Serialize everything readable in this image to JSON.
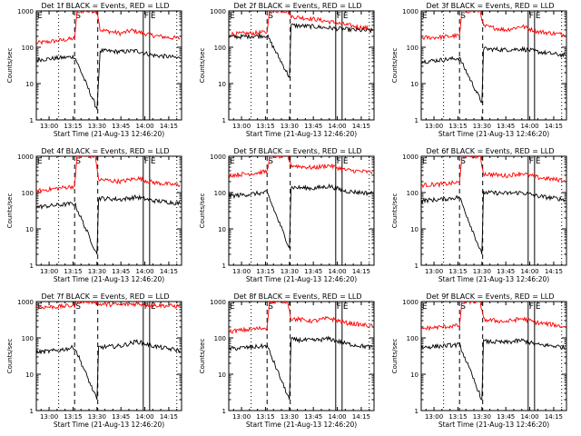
{
  "figure": {
    "background": "#ffffff",
    "line_color": "#000000"
  },
  "chart_data": [
    {
      "type": "line",
      "title": "Det 1f BLACK = Events, RED = LLD",
      "xlabel": "Start Time (21-Aug-13 12:46:20)",
      "ylabel": "Counts/sec",
      "yscale": "log",
      "ylim": [
        1,
        1000
      ],
      "xlim": [
        "12:52",
        "14:23"
      ],
      "x_ticks": [
        "13:00",
        "13:15",
        "13:30",
        "13:45",
        "14:00",
        "14:15"
      ],
      "y_ticks": [
        "1",
        "10",
        "100",
        "1000"
      ],
      "grid": false,
      "series": [
        {
          "color": "#ff0000",
          "x": [
            "12:52",
            "13:05",
            "13:16",
            "13:17.5",
            "13:30",
            "13:32",
            "13:45",
            "13:52",
            "14:05",
            "14:15",
            "14:22"
          ],
          "y": [
            130,
            150,
            175,
            1000,
            1000,
            300,
            240,
            290,
            210,
            185,
            175
          ]
        },
        {
          "color": "#000000",
          "x": [
            "12:52",
            "13:05",
            "13:16",
            "13:30",
            "13:32",
            "13:45",
            "13:55",
            "14:05",
            "14:15",
            "14:22"
          ],
          "y": [
            45,
            50,
            55,
            2,
            80,
            75,
            80,
            60,
            55,
            50
          ]
        }
      ],
      "markers": [
        {
          "label": "E",
          "x": "12:52"
        },
        {
          "label": "S",
          "x": "13:16"
        },
        {
          "label": "F",
          "x": "13:59"
        },
        {
          "label": "E",
          "x": "14:03"
        }
      ]
    },
    {
      "type": "line",
      "title": "Det 2f BLACK = Events, RED = LLD",
      "xlabel": "Start Time (21-Aug-13 12:46:20)",
      "ylabel": "Counts/sec",
      "yscale": "log",
      "ylim": [
        1,
        1000
      ],
      "xlim": [
        "12:52",
        "14:23"
      ],
      "x_ticks": [
        "13:00",
        "13:15",
        "13:30",
        "13:45",
        "14:00",
        "14:15"
      ],
      "y_ticks": [
        "1",
        "10",
        "100",
        "1000"
      ],
      "grid": false,
      "series": [
        {
          "color": "#ff0000",
          "x": [
            "12:52",
            "13:05",
            "13:16",
            "13:17.5",
            "13:29",
            "13:31",
            "13:45",
            "13:58",
            "14:10",
            "14:22"
          ],
          "y": [
            230,
            240,
            260,
            1000,
            1000,
            700,
            600,
            480,
            380,
            320
          ]
        },
        {
          "color": "#000000",
          "x": [
            "12:52",
            "13:05",
            "13:16",
            "13:30",
            "13:31",
            "13:45",
            "13:58",
            "14:10",
            "14:22"
          ],
          "y": [
            190,
            200,
            210,
            15,
            400,
            370,
            330,
            300,
            280
          ]
        }
      ],
      "markers": [
        {
          "label": "E",
          "x": "12:52"
        },
        {
          "label": "S",
          "x": "13:16"
        },
        {
          "label": "F",
          "x": "13:59"
        },
        {
          "label": "E",
          "x": "14:03"
        }
      ]
    },
    {
      "type": "line",
      "title": "Det 3f BLACK = Events, RED = LLD",
      "xlabel": "Start Time (21-Aug-13 12:46:20)",
      "ylabel": "Counts/sec",
      "yscale": "log",
      "ylim": [
        1,
        1000
      ],
      "xlim": [
        "12:52",
        "14:23"
      ],
      "x_ticks": [
        "13:00",
        "13:15",
        "13:30",
        "13:45",
        "14:00",
        "14:15"
      ],
      "y_ticks": [
        "1",
        "10",
        "100",
        "1000"
      ],
      "grid": false,
      "series": [
        {
          "color": "#ff0000",
          "x": [
            "12:52",
            "13:05",
            "13:16",
            "13:17.5",
            "13:29",
            "13:31",
            "13:45",
            "13:55",
            "14:05",
            "14:15",
            "14:22"
          ],
          "y": [
            180,
            190,
            210,
            1000,
            1000,
            380,
            300,
            380,
            270,
            240,
            220
          ]
        },
        {
          "color": "#000000",
          "x": [
            "12:52",
            "13:05",
            "13:16",
            "13:30",
            "13:31",
            "13:45",
            "13:55",
            "14:05",
            "14:15",
            "14:22"
          ],
          "y": [
            40,
            45,
            50,
            3,
            90,
            85,
            90,
            75,
            65,
            60
          ]
        }
      ],
      "markers": [
        {
          "label": "E",
          "x": "12:52"
        },
        {
          "label": "S",
          "x": "13:16"
        },
        {
          "label": "F",
          "x": "13:59"
        },
        {
          "label": "E",
          "x": "14:03"
        }
      ]
    },
    {
      "type": "line",
      "title": "Det 4f BLACK = Events, RED = LLD",
      "xlabel": "Start Time (21-Aug-13 12:46:20)",
      "ylabel": "Counts/sec",
      "yscale": "log",
      "ylim": [
        1,
        1000
      ],
      "xlim": [
        "12:52",
        "14:23"
      ],
      "x_ticks": [
        "13:00",
        "13:15",
        "13:30",
        "13:45",
        "14:00",
        "14:15"
      ],
      "y_ticks": [
        "1",
        "10",
        "100",
        "1000"
      ],
      "grid": false,
      "series": [
        {
          "color": "#ff0000",
          "x": [
            "12:52",
            "13:05",
            "13:16",
            "13:17.5",
            "13:29",
            "13:31",
            "13:45",
            "13:55",
            "14:05",
            "14:15",
            "14:22"
          ],
          "y": [
            110,
            130,
            150,
            1000,
            1000,
            230,
            200,
            250,
            190,
            170,
            160
          ]
        },
        {
          "color": "#000000",
          "x": [
            "12:52",
            "13:05",
            "13:16",
            "13:30",
            "13:31",
            "13:45",
            "13:55",
            "14:05",
            "14:15",
            "14:22"
          ],
          "y": [
            40,
            45,
            50,
            2,
            70,
            65,
            75,
            60,
            55,
            50
          ]
        }
      ],
      "markers": [
        {
          "label": "E",
          "x": "12:52"
        },
        {
          "label": "S",
          "x": "13:16"
        },
        {
          "label": "F",
          "x": "13:59"
        },
        {
          "label": "E",
          "x": "14:03"
        }
      ]
    },
    {
      "type": "line",
      "title": "Det 5f BLACK = Events, RED = LLD",
      "xlabel": "Start Time (21-Aug-13 12:46:20)",
      "ylabel": "Counts/sec",
      "yscale": "log",
      "ylim": [
        1,
        1000
      ],
      "xlim": [
        "12:52",
        "14:23"
      ],
      "x_ticks": [
        "13:00",
        "13:15",
        "13:30",
        "13:45",
        "14:00",
        "14:15"
      ],
      "y_ticks": [
        "1",
        "10",
        "100",
        "1000"
      ],
      "grid": false,
      "series": [
        {
          "color": "#ff0000",
          "x": [
            "12:52",
            "13:05",
            "13:16",
            "13:17.5",
            "13:29",
            "13:31",
            "13:45",
            "13:55",
            "14:05",
            "14:15",
            "14:22"
          ],
          "y": [
            300,
            330,
            380,
            1000,
            1000,
            560,
            480,
            560,
            420,
            380,
            360
          ]
        },
        {
          "color": "#000000",
          "x": [
            "12:52",
            "13:05",
            "13:16",
            "13:30",
            "13:31",
            "13:45",
            "13:55",
            "14:05",
            "14:15",
            "14:22"
          ],
          "y": [
            80,
            90,
            100,
            3,
            140,
            130,
            150,
            110,
            100,
            95
          ]
        }
      ],
      "markers": [
        {
          "label": "E",
          "x": "12:52"
        },
        {
          "label": "S",
          "x": "13:16"
        },
        {
          "label": "F",
          "x": "13:59"
        },
        {
          "label": "E",
          "x": "14:03"
        }
      ]
    },
    {
      "type": "line",
      "title": "Det 6f BLACK = Events, RED = LLD",
      "xlabel": "Start Time (21-Aug-13 12:46:20)",
      "ylabel": "Counts/sec",
      "yscale": "log",
      "ylim": [
        1,
        1000
      ],
      "xlim": [
        "12:52",
        "14:23"
      ],
      "x_ticks": [
        "13:00",
        "13:15",
        "13:30",
        "13:45",
        "14:00",
        "14:15"
      ],
      "y_ticks": [
        "1",
        "10",
        "100",
        "1000"
      ],
      "grid": false,
      "series": [
        {
          "color": "#ff0000",
          "x": [
            "12:52",
            "13:05",
            "13:16",
            "13:17.5",
            "13:29",
            "13:31",
            "13:45",
            "13:55",
            "14:05",
            "14:15",
            "14:22"
          ],
          "y": [
            160,
            170,
            190,
            1000,
            1000,
            330,
            290,
            340,
            260,
            230,
            220
          ]
        },
        {
          "color": "#000000",
          "x": [
            "12:52",
            "13:05",
            "13:16",
            "13:30",
            "13:31",
            "13:45",
            "13:55",
            "14:05",
            "14:15",
            "14:22"
          ],
          "y": [
            60,
            65,
            75,
            2,
            100,
            95,
            100,
            80,
            70,
            65
          ]
        }
      ],
      "markers": [
        {
          "label": "E",
          "x": "12:52"
        },
        {
          "label": "S",
          "x": "13:16"
        },
        {
          "label": "F",
          "x": "13:59"
        },
        {
          "label": "E",
          "x": "14:03"
        }
      ]
    },
    {
      "type": "line",
      "title": "Det 7f BLACK = Events, RED = LLD",
      "xlabel": "Start Time (21-Aug-13 12:46:20)",
      "ylabel": "Counts/sec",
      "yscale": "log",
      "ylim": [
        1,
        1000
      ],
      "xlim": [
        "12:52",
        "14:23"
      ],
      "x_ticks": [
        "13:00",
        "13:15",
        "13:30",
        "13:45",
        "14:00",
        "14:15"
      ],
      "y_ticks": [
        "1",
        "10",
        "100",
        "1000"
      ],
      "grid": false,
      "series": [
        {
          "color": "#ff0000",
          "x": [
            "12:52",
            "13:05",
            "13:16",
            "13:17.5",
            "13:29",
            "13:31",
            "13:45",
            "13:55",
            "14:05",
            "14:15",
            "14:22"
          ],
          "y": [
            700,
            720,
            780,
            1000,
            1000,
            850,
            820,
            870,
            800,
            760,
            740
          ]
        },
        {
          "color": "#000000",
          "x": [
            "12:52",
            "13:05",
            "13:16",
            "13:30",
            "13:31",
            "13:45",
            "13:55",
            "14:05",
            "14:15",
            "14:22"
          ],
          "y": [
            40,
            45,
            55,
            2,
            55,
            60,
            80,
            60,
            50,
            45
          ]
        }
      ],
      "markers": [
        {
          "label": "E",
          "x": "12:52"
        },
        {
          "label": "S",
          "x": "13:16"
        },
        {
          "label": "F",
          "x": "13:59"
        },
        {
          "label": "E",
          "x": "14:03"
        }
      ]
    },
    {
      "type": "line",
      "title": "Det 8f BLACK = Events, RED = LLD",
      "xlabel": "Start Time (21-Aug-13 12:46:20)",
      "ylabel": "Counts/sec",
      "yscale": "log",
      "ylim": [
        1,
        1000
      ],
      "xlim": [
        "12:52",
        "14:23"
      ],
      "x_ticks": [
        "13:00",
        "13:15",
        "13:30",
        "13:45",
        "14:00",
        "14:15"
      ],
      "y_ticks": [
        "1",
        "10",
        "100",
        "1000"
      ],
      "grid": false,
      "series": [
        {
          "color": "#ff0000",
          "x": [
            "12:52",
            "13:05",
            "13:16",
            "13:17.5",
            "13:29",
            "13:31",
            "13:45",
            "13:55",
            "14:05",
            "14:15",
            "14:22"
          ],
          "y": [
            150,
            170,
            190,
            1000,
            1000,
            340,
            290,
            350,
            260,
            230,
            210
          ]
        },
        {
          "color": "#000000",
          "x": [
            "12:52",
            "13:05",
            "13:16",
            "13:30",
            "13:31",
            "13:45",
            "13:55",
            "14:05",
            "14:15",
            "14:22"
          ],
          "y": [
            50,
            55,
            60,
            2,
            90,
            85,
            95,
            70,
            60,
            55
          ]
        }
      ],
      "markers": [
        {
          "label": "E",
          "x": "12:52"
        },
        {
          "label": "S",
          "x": "13:16"
        },
        {
          "label": "F",
          "x": "13:59"
        },
        {
          "label": "E",
          "x": "14:03"
        }
      ]
    },
    {
      "type": "line",
      "title": "Det 9f BLACK = Events, RED = LLD",
      "xlabel": "Start Time (21-Aug-13 12:46:20)",
      "ylabel": "Counts/sec",
      "yscale": "log",
      "ylim": [
        1,
        1000
      ],
      "xlim": [
        "12:52",
        "14:23"
      ],
      "x_ticks": [
        "13:00",
        "13:15",
        "13:30",
        "13:45",
        "14:00",
        "14:15"
      ],
      "y_ticks": [
        "1",
        "10",
        "100",
        "1000"
      ],
      "grid": false,
      "series": [
        {
          "color": "#ff0000",
          "x": [
            "12:52",
            "13:05",
            "13:16",
            "13:17.5",
            "13:29",
            "13:31",
            "13:45",
            "13:55",
            "14:05",
            "14:15",
            "14:22"
          ],
          "y": [
            180,
            200,
            220,
            1000,
            1000,
            320,
            280,
            340,
            260,
            230,
            200
          ]
        },
        {
          "color": "#000000",
          "x": [
            "12:52",
            "13:05",
            "13:16",
            "13:30",
            "13:31",
            "13:45",
            "13:55",
            "14:05",
            "14:15",
            "14:22"
          ],
          "y": [
            55,
            60,
            65,
            2,
            80,
            75,
            85,
            65,
            60,
            55
          ]
        }
      ],
      "markers": [
        {
          "label": "E",
          "x": "12:52"
        },
        {
          "label": "S",
          "x": "13:16"
        },
        {
          "label": "F",
          "x": "13:59"
        },
        {
          "label": "E",
          "x": "14:03"
        }
      ]
    }
  ]
}
